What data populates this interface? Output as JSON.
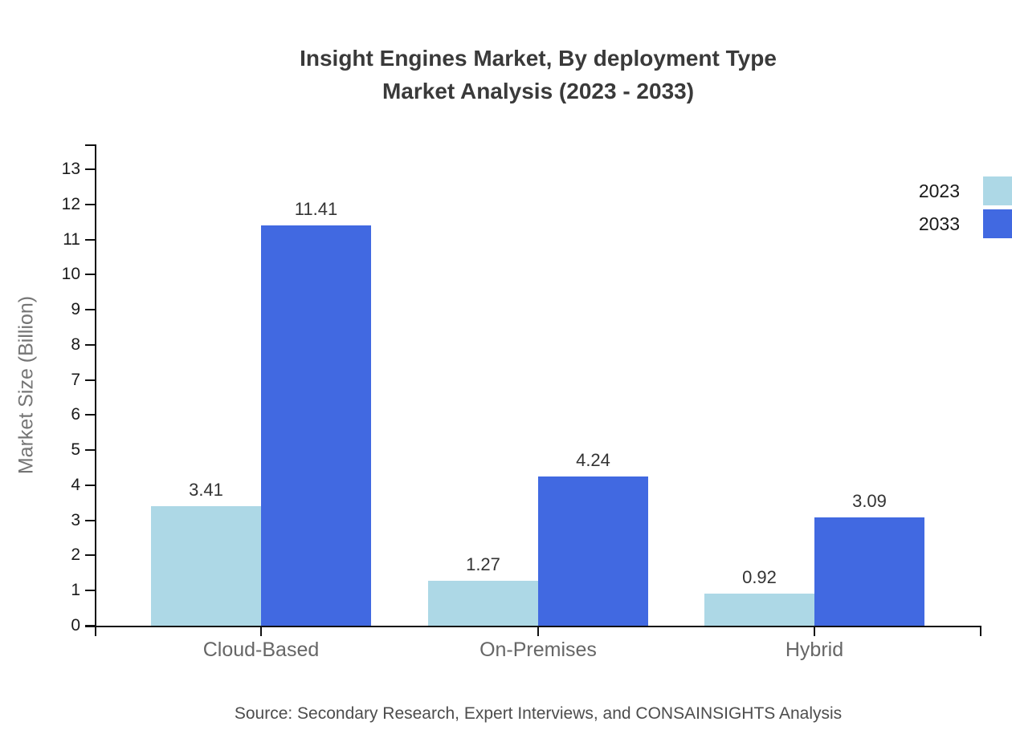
{
  "header": {
    "title_line1": "Insight Engines Market, By deployment Type",
    "title_line2": "Market Analysis (2023 - 2033)"
  },
  "footer": {
    "source": "Source: Secondary Research, Expert Interviews, and CONSAINSIGHTS Analysis"
  },
  "chart_data": {
    "type": "bar",
    "title": "Insight Engines Market, By deployment Type Market Analysis (2023 - 2033)",
    "categories": [
      "Cloud-Based",
      "On-Premises",
      "Hybrid"
    ],
    "series": [
      {
        "name": "2023",
        "color": "#ADD8E6",
        "values": [
          3.41,
          1.27,
          0.92
        ]
      },
      {
        "name": "2033",
        "color": "#4169E1",
        "values": [
          11.41,
          4.24,
          3.09
        ]
      }
    ],
    "xlabel": "",
    "ylabel": "Market Size (Billion)",
    "ylim": [
      0,
      13
    ],
    "ytick_step": 1,
    "grid": false,
    "legend_position": "top-right",
    "value_labels": true,
    "axis_color": "#111111",
    "text_colors": {
      "title": "#3a3a3a",
      "tick_labels": "#1a1a1a",
      "category_labels": "#666666",
      "value_labels": "#333333",
      "source": "#4d4d4d"
    }
  }
}
